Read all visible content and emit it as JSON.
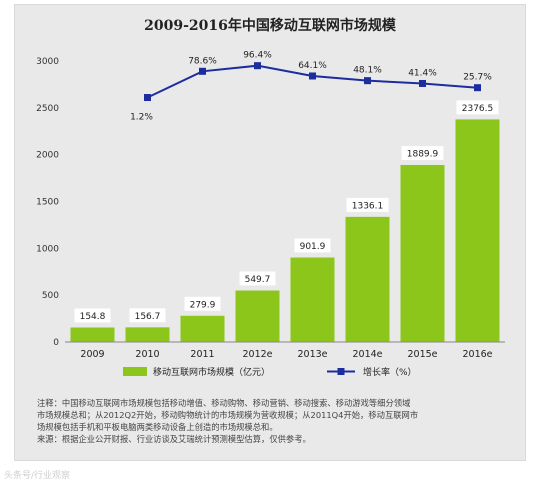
{
  "chart_data": {
    "type": "bar+line",
    "title": "2009-2016年中国移动互联网市场规模",
    "categories": [
      "2009",
      "2010",
      "2011",
      "2012e",
      "2013e",
      "2014e",
      "2015e",
      "2016e"
    ],
    "bar_series": {
      "name": "移动互联网市场规模（亿元）",
      "values": [
        154.8,
        156.7,
        279.9,
        549.7,
        901.9,
        1336.1,
        1889.9,
        2376.5
      ],
      "labels": [
        "154.8",
        "156.7",
        "279.9",
        "549.7",
        "901.9",
        "1336.1",
        "1889.9",
        "2376.5"
      ]
    },
    "line_series": {
      "name": "增长率（%）",
      "values": [
        null,
        1.2,
        78.6,
        96.4,
        64.1,
        48.1,
        41.4,
        25.7
      ],
      "labels": [
        null,
        "1.2%",
        "78.6%",
        "96.4%",
        "64.1%",
        "48.1%",
        "41.4%",
        "25.7%"
      ],
      "plotted_y": [
        null,
        2610,
        2890,
        2950,
        2840,
        2790,
        2760,
        2715
      ]
    },
    "y_ticks": [
      "0",
      "500",
      "1000",
      "1500",
      "2000",
      "2500",
      "3000"
    ],
    "ylim": [
      0,
      3000
    ],
    "legend_position": "bottom",
    "grid": false,
    "colors": {
      "bar": "#8cc61a",
      "bar_label_bg": "#ffffff",
      "line": "#1c2d9e",
      "marker": "#1c2d9e"
    }
  },
  "notes": [
    "注释：中国移动互联网市场规模包括移动增值、移动购物、移动营销、移动搜索、移动游戏等细分领域",
    "市场规模总和；从2012Q2开始，移动购物统计的市场规模为营收规模；从2011Q4开始，移动互联网市",
    "场规模包括手机和平板电脑两类移动设备上创造的市场规模总和。",
    "来源：根据企业公开财报、行业访谈及艾瑞统计预测模型估算，仅供参考。"
  ],
  "watermark": "头条号/行业观察"
}
